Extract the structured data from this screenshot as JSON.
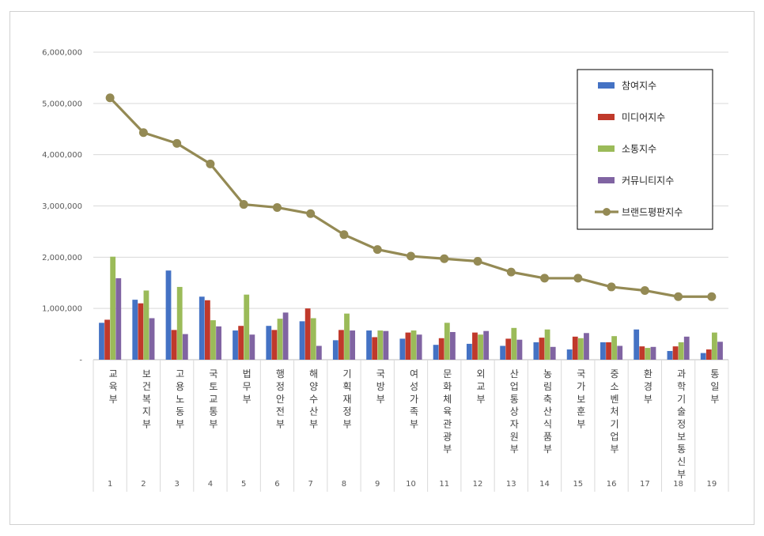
{
  "chart_data": {
    "type": "bar",
    "ylim": [
      0,
      6000000
    ],
    "y_ticks": [
      "-",
      "1,000,000",
      "2,000,000",
      "3,000,000",
      "4,000,000",
      "5,000,000",
      "6,000,000"
    ],
    "y_tick_values": [
      0,
      1000000,
      2000000,
      3000000,
      4000000,
      5000000,
      6000000
    ],
    "grid": true,
    "legend_position": "top-right",
    "index_labels": [
      "1",
      "2",
      "3",
      "4",
      "5",
      "6",
      "7",
      "8",
      "9",
      "10",
      "11",
      "12",
      "13",
      "14",
      "15",
      "16",
      "17",
      "18",
      "19"
    ],
    "categories": [
      "교육부",
      "보건복지부",
      "고용노동부",
      "국토교통부",
      "법무부",
      "행정안전부",
      "해양수산부",
      "기획재정부",
      "국방부",
      "여성가족부",
      "문화체육관광부",
      "외교부",
      "산업통상자원부",
      "농림축산식품부",
      "국가보훈부",
      "중소벤처기업부",
      "환경부",
      "과학기술정보통신부",
      "통일부"
    ],
    "series": [
      {
        "name": "참여지수",
        "type": "bar",
        "color": "#4472C4",
        "values": [
          720000,
          1170000,
          1740000,
          1230000,
          570000,
          660000,
          750000,
          380000,
          570000,
          410000,
          290000,
          310000,
          270000,
          340000,
          200000,
          340000,
          590000,
          170000,
          130000
        ]
      },
      {
        "name": "미디어지수",
        "type": "bar",
        "color": "#C0392B",
        "values": [
          780000,
          1100000,
          580000,
          1160000,
          660000,
          580000,
          1000000,
          580000,
          440000,
          530000,
          420000,
          530000,
          410000,
          430000,
          450000,
          340000,
          260000,
          260000,
          200000
        ]
      },
      {
        "name": "소통지수",
        "type": "bar",
        "color": "#9BBB59",
        "values": [
          2010000,
          1350000,
          1420000,
          770000,
          1270000,
          800000,
          810000,
          900000,
          570000,
          570000,
          720000,
          490000,
          620000,
          590000,
          420000,
          460000,
          230000,
          340000,
          530000
        ]
      },
      {
        "name": "커뮤니티지수",
        "type": "bar",
        "color": "#8064A2",
        "values": [
          1590000,
          810000,
          500000,
          650000,
          490000,
          920000,
          270000,
          570000,
          560000,
          490000,
          540000,
          560000,
          390000,
          250000,
          520000,
          270000,
          250000,
          450000,
          350000
        ]
      },
      {
        "name": "브랜드평판지수",
        "type": "line",
        "color": "#948A54",
        "values": [
          5110000,
          4430000,
          4220000,
          3820000,
          3030000,
          2970000,
          2850000,
          2440000,
          2150000,
          2020000,
          1970000,
          1920000,
          1710000,
          1590000,
          1590000,
          1420000,
          1350000,
          1230000,
          1230000
        ]
      }
    ]
  }
}
